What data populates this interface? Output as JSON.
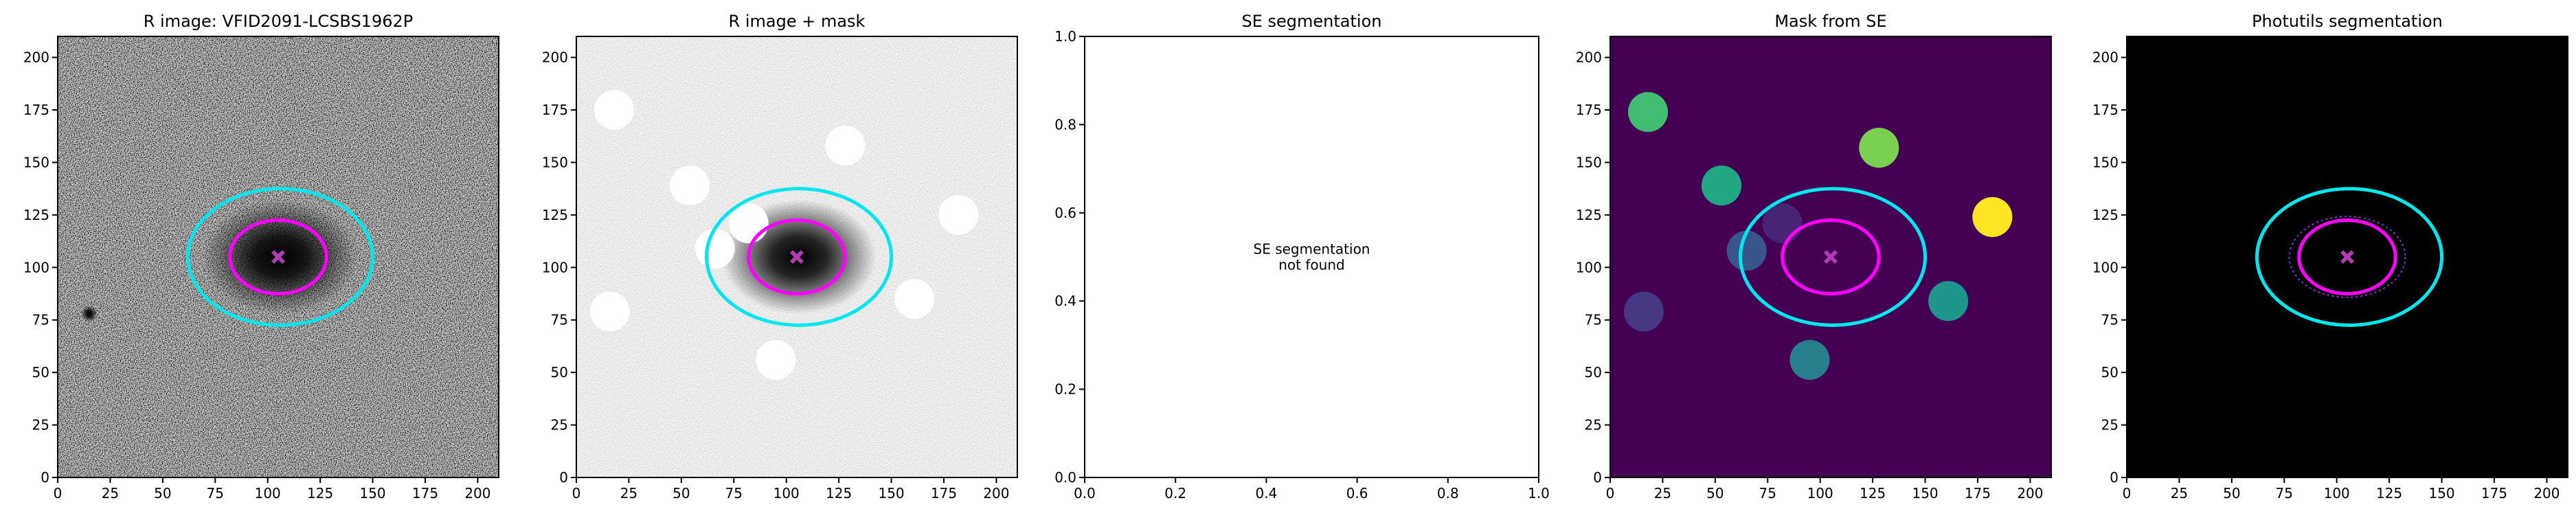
{
  "chart_data": [
    {
      "type": "image",
      "cmap": "gray",
      "title": "R image: VFID2091-LCSBS1962P",
      "xlim": [
        0,
        210
      ],
      "ylim": [
        0,
        210
      ],
      "xticks": [
        0,
        25,
        50,
        75,
        100,
        125,
        150,
        175,
        200
      ],
      "yticks": [
        0,
        25,
        50,
        75,
        100,
        125,
        150,
        175,
        200
      ],
      "ellipses": [
        {
          "x": 106,
          "y": 105,
          "width": 88,
          "height": 65,
          "color": "#00e8ee"
        },
        {
          "x": 105,
          "y": 105,
          "width": 46,
          "height": 35,
          "color": "#ff00ff"
        }
      ],
      "marker": {
        "x": 105,
        "y": 105,
        "color": "#b23cb2"
      }
    },
    {
      "type": "image",
      "cmap": "gray_r",
      "title": "R image + mask",
      "xlim": [
        0,
        210
      ],
      "ylim": [
        0,
        210
      ],
      "xticks": [
        0,
        25,
        50,
        75,
        100,
        125,
        150,
        175,
        200
      ],
      "yticks": [
        0,
        25,
        50,
        75,
        100,
        125,
        150,
        175,
        200
      ],
      "sources": [
        {
          "x": 18,
          "y": 175,
          "r": 9.5,
          "color": "#ffffff"
        },
        {
          "x": 54,
          "y": 139,
          "r": 9.5,
          "color": "#ffffff"
        },
        {
          "x": 128,
          "y": 158,
          "r": 9.5,
          "color": "#ffffff"
        },
        {
          "x": 182,
          "y": 125,
          "r": 9.5,
          "color": "#ffffff"
        },
        {
          "x": 16,
          "y": 79,
          "r": 9.5,
          "color": "#ffffff"
        },
        {
          "x": 161,
          "y": 85,
          "r": 9.5,
          "color": "#ffffff"
        },
        {
          "x": 95,
          "y": 56,
          "r": 9.5,
          "color": "#ffffff"
        },
        {
          "x": 66,
          "y": 109,
          "r": 9.5,
          "color": "#ffffff"
        },
        {
          "x": 82,
          "y": 121,
          "r": 9.5,
          "color": "#ffffff"
        }
      ],
      "ellipses": [
        {
          "x": 106,
          "y": 105,
          "width": 88,
          "height": 65,
          "color": "#00e8ee"
        },
        {
          "x": 105,
          "y": 105,
          "width": 46,
          "height": 35,
          "color": "#ff00ff"
        }
      ],
      "marker": {
        "x": 105,
        "y": 105,
        "color": "#b23cb2"
      }
    },
    {
      "type": "empty",
      "title": "SE segmentation",
      "xlim": [
        0,
        1
      ],
      "ylim": [
        0,
        1
      ],
      "xticks": [
        {
          "value": 0,
          "label": "0.0"
        },
        {
          "value": 0.2,
          "label": "0.2"
        },
        {
          "value": 0.4,
          "label": "0.4"
        },
        {
          "value": 0.6,
          "label": "0.6"
        },
        {
          "value": 0.8,
          "label": "0.8"
        },
        {
          "value": 1,
          "label": "1.0"
        }
      ],
      "yticks": [
        {
          "value": 0,
          "label": "0.0"
        },
        {
          "value": 0.2,
          "label": "0.2"
        },
        {
          "value": 0.4,
          "label": "0.4"
        },
        {
          "value": 0.6,
          "label": "0.6"
        },
        {
          "value": 0.8,
          "label": "0.8"
        },
        {
          "value": 1,
          "label": "1.0"
        }
      ],
      "annotation": {
        "x": 0.5,
        "y": 0.5,
        "lines": [
          "SE segmentation",
          "not found"
        ]
      }
    },
    {
      "type": "image",
      "background": "#440154",
      "title": "Mask from SE",
      "xlim": [
        0,
        210
      ],
      "ylim": [
        0,
        210
      ],
      "xticks": [
        0,
        25,
        50,
        75,
        100,
        125,
        150,
        175,
        200
      ],
      "yticks": [
        0,
        25,
        50,
        75,
        100,
        125,
        150,
        175,
        200
      ],
      "sources": [
        {
          "x": 18,
          "y": 174,
          "r": 9.5,
          "color": "#40bd72"
        },
        {
          "x": 53,
          "y": 139,
          "r": 9.5,
          "color": "#22a785"
        },
        {
          "x": 128,
          "y": 157,
          "r": 9.5,
          "color": "#7ad151"
        },
        {
          "x": 182,
          "y": 124,
          "r": 9.5,
          "color": "#fde725"
        },
        {
          "x": 16,
          "y": 79,
          "r": 9.5,
          "color": "#453781"
        },
        {
          "x": 161,
          "y": 84,
          "r": 9.5,
          "color": "#1f968b"
        },
        {
          "x": 95,
          "y": 56,
          "r": 9.5,
          "color": "#277f8e"
        },
        {
          "x": 65,
          "y": 108,
          "r": 9.5,
          "color": "#39568c"
        },
        {
          "x": 82,
          "y": 121,
          "r": 9.5,
          "color": "#482475"
        }
      ],
      "ellipses": [
        {
          "x": 106,
          "y": 105,
          "width": 88,
          "height": 65,
          "color": "#00e8ee"
        },
        {
          "x": 105,
          "y": 105,
          "width": 46,
          "height": 35,
          "color": "#ff00ff"
        }
      ],
      "marker": {
        "x": 105,
        "y": 105,
        "color": "#b23cb2"
      }
    },
    {
      "type": "image",
      "background": "#000000",
      "title": "Photutils segmentation",
      "xlim": [
        0,
        210
      ],
      "ylim": [
        0,
        210
      ],
      "xticks": [
        0,
        25,
        50,
        75,
        100,
        125,
        150,
        175,
        200
      ],
      "yticks": [
        0,
        25,
        50,
        75,
        100,
        125,
        150,
        175,
        200
      ],
      "ellipses": [
        {
          "x": 106,
          "y": 105,
          "width": 88,
          "height": 65,
          "color": "#00e8ee"
        },
        {
          "x": 105,
          "y": 105,
          "width": 46,
          "height": 35,
          "color": "#ff00ff"
        }
      ],
      "marker": {
        "x": 105,
        "y": 105,
        "color": "#b23cb2"
      }
    }
  ]
}
